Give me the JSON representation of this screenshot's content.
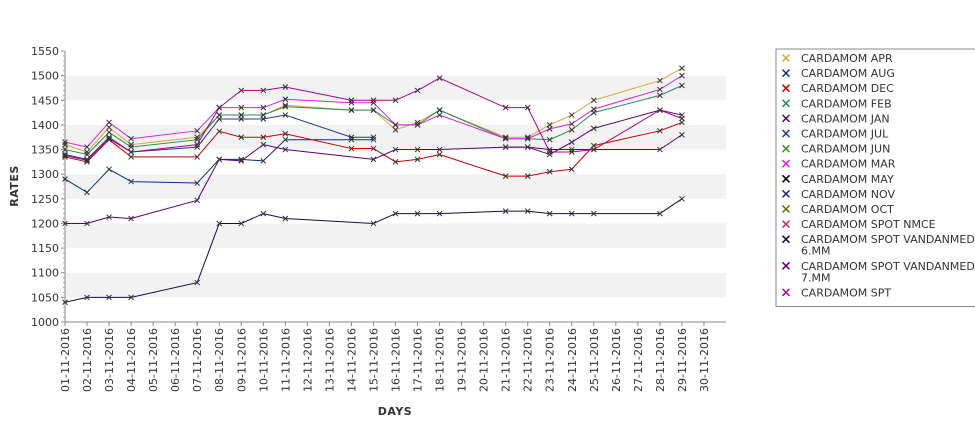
{
  "chart_data": {
    "type": "line",
    "xlabel": "DAYS",
    "ylabel": "RATES",
    "ylim": [
      1000,
      1550
    ],
    "yticks": [
      1000,
      1050,
      1100,
      1150,
      1200,
      1250,
      1300,
      1350,
      1400,
      1450,
      1500,
      1550
    ],
    "grid": "alternating horizontal bands",
    "legend_position": "right",
    "x": [
      "01-11-2016",
      "02-11-2016",
      "03-11-2016",
      "04-11-2016",
      "05-11-2016",
      "06-11-2016",
      "07-11-2016",
      "08-11-2016",
      "09-11-2016",
      "10-11-2016",
      "11-11-2016",
      "12-11-2016",
      "13-11-2016",
      "14-11-2016",
      "15-11-2016",
      "16-11-2016",
      "17-11-2016",
      "18-11-2016",
      "19-11-2016",
      "20-11-2016",
      "21-11-2016",
      "22-11-2016",
      "23-11-2016",
      "24-11-2016",
      "25-11-2016",
      "26-11-2016",
      "27-11-2016",
      "28-11-2016",
      "29-11-2016",
      "30-11-2016"
    ],
    "series": [
      {
        "name": "CARDAMOM APR",
        "color": "#d4a83c",
        "values": [
          1360,
          1345,
          1395,
          1360,
          null,
          null,
          1375,
          1420,
          1420,
          1420,
          1440,
          null,
          null,
          1430,
          1430,
          1390,
          1405,
          1430,
          null,
          null,
          1375,
          1375,
          1400,
          1420,
          1450,
          null,
          null,
          1490,
          1515,
          null
        ]
      },
      {
        "name": "CARDAMOM AUG",
        "color": "#0a2d86",
        "values": [
          1290,
          1263,
          1310,
          1285,
          null,
          null,
          1282,
          1330,
          1330,
          1327,
          1370,
          null,
          null,
          1370,
          1370,
          null,
          null,
          null,
          null,
          null,
          null,
          null,
          null,
          null,
          null,
          null,
          null,
          null,
          null,
          null
        ]
      },
      {
        "name": "CARDAMOM DEC",
        "color": "#c80000",
        "values": [
          1335,
          1325,
          1370,
          1335,
          null,
          null,
          1335,
          1387,
          1375,
          1375,
          1382,
          null,
          null,
          1352,
          1352,
          1325,
          1330,
          1340,
          null,
          null,
          1296,
          1296,
          1305,
          1310,
          1358,
          null,
          null,
          1388,
          1405,
          null
        ]
      },
      {
        "name": "CARDAMOM FEB",
        "color": "#2e8b57",
        "values": [
          1350,
          1340,
          1385,
          1355,
          null,
          null,
          1370,
          1420,
          1420,
          1420,
          1437,
          null,
          null,
          1430,
          1430,
          1400,
          1400,
          1430,
          null,
          null,
          1372,
          1372,
          1370,
          1390,
          1425,
          null,
          null,
          1460,
          1480,
          null
        ]
      },
      {
        "name": "CARDAMOM JAN",
        "color": "#5a007a",
        "values": [
          null,
          null,
          null,
          null,
          null,
          null,
          null,
          null,
          null,
          null,
          null,
          null,
          null,
          null,
          null,
          null,
          null,
          null,
          null,
          null,
          1355,
          1355,
          1340,
          1365,
          1393,
          null,
          null,
          1430,
          1420,
          null
        ]
      },
      {
        "name": "CARDAMOM JUL",
        "color": "#1f3a93",
        "values": [
          1340,
          1330,
          1375,
          1345,
          null,
          null,
          1355,
          1412,
          1412,
          1412,
          1420,
          null,
          null,
          1375,
          1375,
          null,
          null,
          null,
          null,
          null,
          null,
          null,
          null,
          null,
          null,
          null,
          null,
          null,
          null,
          null
        ]
      },
      {
        "name": "CARDAMOM JUN",
        "color": "#3c8c28",
        "values": [
          null,
          null,
          null,
          null,
          null,
          null,
          null,
          null,
          null,
          null,
          null,
          null,
          null,
          null,
          null,
          null,
          null,
          null,
          null,
          null,
          null,
          null,
          null,
          null,
          null,
          null,
          null,
          null,
          null,
          null
        ]
      },
      {
        "name": "CARDAMOM MAR",
        "color": "#e020e0",
        "values": [
          1365,
          1355,
          1405,
          1372,
          null,
          null,
          1388,
          1435,
          1435,
          1435,
          1452,
          null,
          null,
          1445,
          1445,
          1400,
          1400,
          1420,
          null,
          null,
          1372,
          1372,
          1392,
          1402,
          1432,
          null,
          null,
          1472,
          1500,
          null
        ]
      },
      {
        "name": "CARDAMOM MAY",
        "color": "#000000",
        "values": [
          null,
          null,
          null,
          null,
          null,
          null,
          null,
          null,
          null,
          null,
          null,
          null,
          null,
          null,
          null,
          null,
          null,
          null,
          null,
          null,
          null,
          null,
          null,
          null,
          null,
          null,
          null,
          null,
          null,
          null
        ]
      },
      {
        "name": "CARDAMOM NOV",
        "color": "#14286e",
        "values": [
          null,
          null,
          null,
          null,
          null,
          null,
          null,
          null,
          null,
          null,
          null,
          null,
          null,
          null,
          null,
          null,
          null,
          null,
          null,
          null,
          null,
          null,
          null,
          null,
          null,
          null,
          null,
          null,
          null,
          null
        ]
      },
      {
        "name": "CARDAMOM OCT",
        "color": "#6b6b00",
        "values": [
          null,
          null,
          null,
          null,
          null,
          null,
          null,
          null,
          null,
          null,
          null,
          null,
          null,
          null,
          null,
          null,
          null,
          null,
          null,
          null,
          null,
          null,
          null,
          null,
          null,
          null,
          null,
          null,
          null,
          null
        ]
      },
      {
        "name": "CARDAMOM SPOT NMCE",
        "color": "#d0206e",
        "values": [
          null,
          null,
          null,
          null,
          null,
          null,
          null,
          null,
          null,
          null,
          null,
          null,
          null,
          null,
          null,
          null,
          null,
          null,
          null,
          null,
          null,
          null,
          null,
          null,
          null,
          null,
          null,
          null,
          null,
          null
        ]
      },
      {
        "name": "CARDAMOM SPOT VANDANMEDU 6.MM",
        "color": "#101040",
        "values": [
          1040,
          1050,
          1050,
          1050,
          null,
          null,
          1080,
          1200,
          1200,
          1220,
          1210,
          null,
          null,
          null,
          1200,
          1220,
          1220,
          1220,
          null,
          null,
          1225,
          1225,
          1220,
          1220,
          1220,
          null,
          null,
          1220,
          1250,
          null
        ]
      },
      {
        "name": "CARDAMOM SPOT VANDANMEDU 7.MM",
        "color": "#5a007a",
        "values": [
          1200,
          1200,
          1213,
          1210,
          null,
          null,
          1247,
          1330,
          1327,
          1360,
          1350,
          null,
          null,
          null,
          1330,
          1350,
          1350,
          1350,
          null,
          null,
          1355,
          1355,
          1350,
          1350,
          1350,
          null,
          null,
          1350,
          1380,
          null
        ]
      },
      {
        "name": "CARDAMOM SPT",
        "color": "#b0008c",
        "values": [
          1338,
          1328,
          1372,
          1345,
          null,
          null,
          1360,
          1435,
          1470,
          1470,
          1477,
          null,
          null,
          1450,
          1450,
          1450,
          1470,
          1495,
          null,
          null,
          1435,
          1435,
          1345,
          1345,
          1350,
          null,
          null,
          1430,
          1413,
          null
        ]
      }
    ]
  }
}
